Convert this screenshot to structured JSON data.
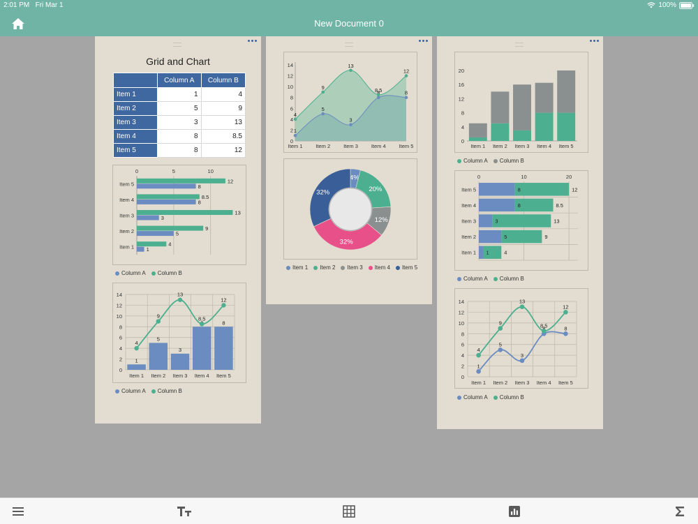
{
  "status": {
    "time": "2:01 PM",
    "date": "Fri Mar 1",
    "battery": "100%"
  },
  "nav": {
    "title": "New Document 0"
  },
  "grid": {
    "title": "Grid and Chart",
    "headers": [
      "Column A",
      "Column B"
    ],
    "rows": [
      {
        "label": "Item 1",
        "a": "1",
        "b": "4"
      },
      {
        "label": "Item 2",
        "a": "5",
        "b": "9"
      },
      {
        "label": "Item 3",
        "a": "3",
        "b": "13"
      },
      {
        "label": "Item 4",
        "a": "8",
        "b": "8.5"
      },
      {
        "label": "Item 5",
        "a": "8",
        "b": "12"
      }
    ]
  },
  "legend": {
    "a": "Column A",
    "b": "Column B",
    "items": [
      "Item 1",
      "Item 2",
      "Item 3",
      "Item 4",
      "Item 5"
    ]
  },
  "colors": {
    "a": "#6b8cc1",
    "b": "#4caf8f",
    "gray": "#8a8f90",
    "pink": "#e8508a",
    "navy": "#3a5f98",
    "header": "#4068a0",
    "teal_bar": "#6fb4a5"
  },
  "chart_data": [
    {
      "type": "bar",
      "orientation": "horizontal",
      "categories": [
        "Item 1",
        "Item 2",
        "Item 3",
        "Item 4",
        "Item 5"
      ],
      "series": [
        {
          "name": "Column A",
          "values": [
            1,
            5,
            3,
            8,
            8
          ]
        },
        {
          "name": "Column B",
          "values": [
            4,
            9,
            13,
            8.5,
            12
          ]
        }
      ],
      "xlim": [
        0,
        14
      ],
      "xticks": [
        0,
        5,
        10
      ],
      "grid": true,
      "legend": "bottom-left"
    },
    {
      "type": "bar",
      "combo": "bar+line",
      "categories": [
        "Item 1",
        "Item 2",
        "Item 3",
        "Item 4",
        "Item 5"
      ],
      "series": [
        {
          "name": "Column A",
          "values": [
            1,
            5,
            3,
            8,
            8
          ],
          "type": "bar"
        },
        {
          "name": "Column B",
          "values": [
            4,
            9,
            13,
            8.5,
            12
          ],
          "type": "line"
        }
      ],
      "ylim": [
        0,
        14
      ],
      "yticks": [
        0,
        2,
        4,
        6,
        8,
        10,
        12,
        14
      ],
      "grid": true,
      "legend": "bottom-left"
    },
    {
      "type": "area",
      "categories": [
        "Item 1",
        "Item 2",
        "Item 3",
        "Item 4",
        "Item 5"
      ],
      "series": [
        {
          "name": "Column A",
          "values": [
            1,
            5,
            3,
            8,
            8
          ]
        },
        {
          "name": "Column B",
          "values": [
            4,
            9,
            13,
            8.5,
            12
          ]
        }
      ],
      "ylim": [
        0,
        14
      ],
      "yticks": [
        0,
        2,
        4,
        6,
        8,
        10,
        12,
        14
      ],
      "grid": false
    },
    {
      "type": "pie",
      "donut": true,
      "labels": [
        "Item 1",
        "Item 2",
        "Item 3",
        "Item 4",
        "Item 5"
      ],
      "values": [
        4,
        20,
        12,
        32,
        32
      ],
      "slice_labels": [
        "4%",
        "20%",
        "12%",
        "32%",
        "32%"
      ],
      "legend": "bottom"
    },
    {
      "type": "bar",
      "stacked": true,
      "categories": [
        "Item 1",
        "Item 2",
        "Item 3",
        "Item 4",
        "Item 5"
      ],
      "series": [
        {
          "name": "Column A",
          "values": [
            1,
            5,
            3,
            8,
            8
          ]
        },
        {
          "name": "Column B",
          "values": [
            4,
            9,
            13,
            8.5,
            12
          ]
        }
      ],
      "ylim": [
        0,
        20
      ],
      "yticks": [
        0,
        4,
        8,
        12,
        16,
        20
      ],
      "grid": false,
      "legend": "bottom-left"
    },
    {
      "type": "bar",
      "orientation": "horizontal",
      "stacked": true,
      "categories": [
        "Item 1",
        "Item 2",
        "Item 3",
        "Item 4",
        "Item 5"
      ],
      "series": [
        {
          "name": "Column A",
          "values": [
            1,
            5,
            3,
            8,
            8
          ]
        },
        {
          "name": "Column B",
          "values": [
            4,
            9,
            13,
            8.5,
            12
          ]
        }
      ],
      "xlim": [
        0,
        22
      ],
      "xticks": [
        0,
        10,
        20
      ],
      "grid": true,
      "legend": "bottom-left"
    },
    {
      "type": "line",
      "categories": [
        "Item 1",
        "Item 2",
        "Item 3",
        "Item 4",
        "Item 5"
      ],
      "series": [
        {
          "name": "Column A",
          "values": [
            1,
            5,
            3,
            8,
            8
          ]
        },
        {
          "name": "Column B",
          "values": [
            4,
            9,
            13,
            8.5,
            12
          ]
        }
      ],
      "ylim": [
        0,
        14
      ],
      "yticks": [
        0,
        2,
        4,
        6,
        8,
        10,
        12,
        14
      ],
      "grid": true,
      "legend": "bottom-left"
    }
  ]
}
